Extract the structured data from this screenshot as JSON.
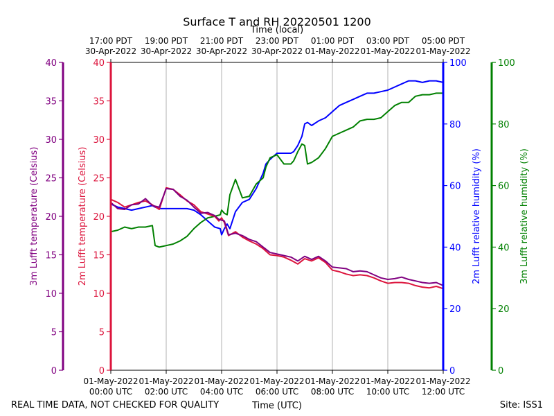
{
  "chart_data": {
    "type": "line",
    "title": "Surface T and RH 20220501 1200",
    "top_axis_label": "Time (local)",
    "top_ticks": [
      {
        "line1": "17:00 PDT",
        "line2": "30-Apr-2022"
      },
      {
        "line1": "19:00 PDT",
        "line2": "30-Apr-2022"
      },
      {
        "line1": "21:00 PDT",
        "line2": "30-Apr-2022"
      },
      {
        "line1": "23:00 PDT",
        "line2": "30-Apr-2022"
      },
      {
        "line1": "01:00 PDT",
        "line2": "01-May-2022"
      },
      {
        "line1": "03:00 PDT",
        "line2": "01-May-2022"
      },
      {
        "line1": "05:00 PDT",
        "line2": "01-May-2022"
      }
    ],
    "bottom_axis_label": "Time (UTC)",
    "bottom_ticks": [
      {
        "line1": "01-May-2022",
        "line2": "00:00 UTC"
      },
      {
        "line1": "01-May-2022",
        "line2": "02:00 UTC"
      },
      {
        "line1": "01-May-2022",
        "line2": "04:00 UTC"
      },
      {
        "line1": "01-May-2022",
        "line2": "06:00 UTC"
      },
      {
        "line1": "01-May-2022",
        "line2": "08:00 UTC"
      },
      {
        "line1": "01-May-2022",
        "line2": "10:00 UTC"
      },
      {
        "line1": "01-May-2022",
        "line2": "12:00 UTC"
      }
    ],
    "x_hours": [
      0,
      2,
      4,
      6,
      8,
      10,
      12
    ],
    "x_range_hours": [
      0,
      12
    ],
    "grid": "vertical",
    "axes": [
      {
        "id": "t3m",
        "label": "3m Lufft temperature (Celsius)",
        "color": "#800080",
        "range": [
          0,
          40
        ],
        "ticks": [
          0,
          5,
          10,
          15,
          20,
          25,
          30,
          35,
          40
        ]
      },
      {
        "id": "t2m",
        "label": "2m Lufft temperature (Celsius)",
        "color": "#dc143c",
        "range": [
          0,
          40
        ],
        "ticks": [
          0,
          5,
          10,
          15,
          20,
          25,
          30,
          35,
          40
        ]
      },
      {
        "id": "rh2m",
        "label": "2m Lufft relative humidity (%)",
        "color": "#0000ff",
        "range": [
          0,
          100
        ],
        "ticks": [
          0,
          20,
          40,
          60,
          80,
          100
        ]
      },
      {
        "id": "rh3m",
        "label": "3m Lufft relative humidity (%)",
        "color": "#008000",
        "range": [
          0,
          100
        ],
        "ticks": [
          0,
          20,
          40,
          60,
          80,
          100
        ]
      }
    ],
    "series": [
      {
        "name": "2m Lufft relative humidity (%)",
        "axis": "rh2m",
        "color": "#0000ff",
        "x": [
          0,
          0.25,
          0.5,
          0.75,
          1.0,
          1.25,
          1.5,
          1.6,
          1.75,
          2.0,
          2.25,
          2.5,
          2.75,
          3.0,
          3.25,
          3.5,
          3.75,
          3.95,
          4.0,
          4.1,
          4.2,
          4.3,
          4.5,
          4.75,
          5.0,
          5.25,
          5.5,
          5.6,
          5.75,
          6.0,
          6.25,
          6.5,
          6.6,
          6.75,
          6.9,
          7.0,
          7.1,
          7.25,
          7.5,
          7.75,
          8.0,
          8.25,
          8.5,
          8.75,
          9.0,
          9.25,
          9.5,
          9.75,
          10.0,
          10.25,
          10.5,
          10.75,
          11.0,
          11.25,
          11.5,
          11.75,
          12.0
        ],
        "values": [
          54,
          53,
          52.5,
          52,
          52.5,
          53,
          53.5,
          53,
          52.5,
          52.5,
          52.5,
          52.5,
          52.5,
          52,
          50.5,
          48.5,
          46.5,
          46,
          44,
          46,
          47.5,
          46,
          51.5,
          54.5,
          55.5,
          59,
          64,
          67,
          68.5,
          70.5,
          70.5,
          70.5,
          71,
          73,
          76,
          80,
          80.5,
          79.5,
          81,
          82,
          84,
          86,
          87,
          88,
          89,
          90,
          90,
          90.5,
          91,
          92,
          93,
          94,
          94,
          93.5,
          94,
          94,
          93.5
        ]
      },
      {
        "name": "3m Lufft relative humidity (%)",
        "axis": "rh3m",
        "color": "#008000",
        "x": [
          0,
          0.25,
          0.5,
          0.75,
          1.0,
          1.25,
          1.5,
          1.6,
          1.75,
          2.0,
          2.25,
          2.5,
          2.75,
          3.0,
          3.25,
          3.5,
          3.75,
          3.95,
          4.0,
          4.1,
          4.2,
          4.3,
          4.5,
          4.75,
          5.0,
          5.25,
          5.5,
          5.6,
          5.75,
          6.0,
          6.25,
          6.5,
          6.6,
          6.75,
          6.9,
          7.0,
          7.1,
          7.25,
          7.5,
          7.75,
          8.0,
          8.25,
          8.5,
          8.75,
          9.0,
          9.25,
          9.5,
          9.75,
          10.0,
          10.25,
          10.5,
          10.75,
          11.0,
          11.25,
          11.5,
          11.75,
          12.0
        ],
        "values": [
          45,
          45.5,
          46.5,
          46,
          46.5,
          46.5,
          47,
          40.5,
          40,
          40.5,
          41,
          42,
          43.5,
          46,
          48,
          49.5,
          50,
          50.5,
          52,
          51,
          50.5,
          57,
          62,
          56,
          56.5,
          60.5,
          62.5,
          66,
          69,
          70,
          67,
          67,
          68,
          71,
          73.5,
          73,
          67,
          67.5,
          69,
          72,
          76,
          77,
          78,
          79,
          81,
          81.5,
          81.5,
          82,
          84,
          86,
          87,
          87,
          89,
          89.5,
          89.5,
          90,
          90
        ]
      },
      {
        "name": "2m Lufft temperature (Celsius)",
        "axis": "t2m",
        "color": "#dc143c",
        "x": [
          0,
          0.25,
          0.5,
          0.75,
          1.0,
          1.25,
          1.5,
          1.75,
          2.0,
          2.25,
          2.5,
          2.75,
          3.0,
          3.25,
          3.5,
          3.75,
          3.9,
          4.0,
          4.1,
          4.25,
          4.5,
          4.75,
          5.0,
          5.25,
          5.5,
          5.75,
          6.0,
          6.25,
          6.5,
          6.75,
          7.0,
          7.25,
          7.5,
          7.75,
          8.0,
          8.25,
          8.5,
          8.75,
          9.0,
          9.25,
          9.5,
          9.75,
          10.0,
          10.25,
          10.5,
          10.75,
          11.0,
          11.25,
          11.5,
          11.75,
          12.0
        ],
        "values": [
          22.2,
          21.8,
          21.2,
          21.5,
          21.8,
          22.0,
          21.5,
          20.9,
          23.7,
          23.5,
          22.8,
          22.0,
          21.5,
          20.6,
          20.3,
          20.0,
          19.4,
          19.8,
          19.2,
          17.5,
          18.0,
          17.3,
          16.8,
          16.4,
          15.8,
          15.0,
          14.9,
          14.7,
          14.3,
          13.8,
          14.5,
          14.2,
          14.6,
          14.0,
          13.0,
          12.8,
          12.5,
          12.3,
          12.4,
          12.3,
          12.0,
          11.6,
          11.3,
          11.4,
          11.4,
          11.3,
          11.0,
          10.8,
          10.7,
          10.9,
          10.6
        ]
      },
      {
        "name": "3m Lufft temperature (Celsius)",
        "axis": "t3m",
        "color": "#800080",
        "x": [
          0,
          0.25,
          0.5,
          0.75,
          1.0,
          1.25,
          1.5,
          1.75,
          2.0,
          2.25,
          2.5,
          2.75,
          3.0,
          3.25,
          3.5,
          3.75,
          3.9,
          4.0,
          4.1,
          4.25,
          4.5,
          4.75,
          5.0,
          5.25,
          5.5,
          5.75,
          6.0,
          6.25,
          6.5,
          6.75,
          7.0,
          7.25,
          7.5,
          7.75,
          8.0,
          8.25,
          8.5,
          8.75,
          9.0,
          9.25,
          9.5,
          9.75,
          10.0,
          10.25,
          10.5,
          10.75,
          11.0,
          11.25,
          11.5,
          11.75,
          12.0
        ],
        "values": [
          21.8,
          21.0,
          20.9,
          21.5,
          21.6,
          22.3,
          21.4,
          21.2,
          23.6,
          23.5,
          22.6,
          22.1,
          21.2,
          20.4,
          20.5,
          20.1,
          19.6,
          19.5,
          19.4,
          17.6,
          17.8,
          17.5,
          17.0,
          16.7,
          16.0,
          15.3,
          15.1,
          14.9,
          14.7,
          14.2,
          14.8,
          14.4,
          14.8,
          14.2,
          13.4,
          13.3,
          13.2,
          12.8,
          12.9,
          12.8,
          12.4,
          12.0,
          11.8,
          11.9,
          12.1,
          11.8,
          11.6,
          11.4,
          11.3,
          11.4,
          11.0
        ]
      }
    ],
    "footer_left": "REAL TIME DATA, NOT CHECKED FOR QUALITY",
    "footer_right": "Site: ISS1"
  }
}
